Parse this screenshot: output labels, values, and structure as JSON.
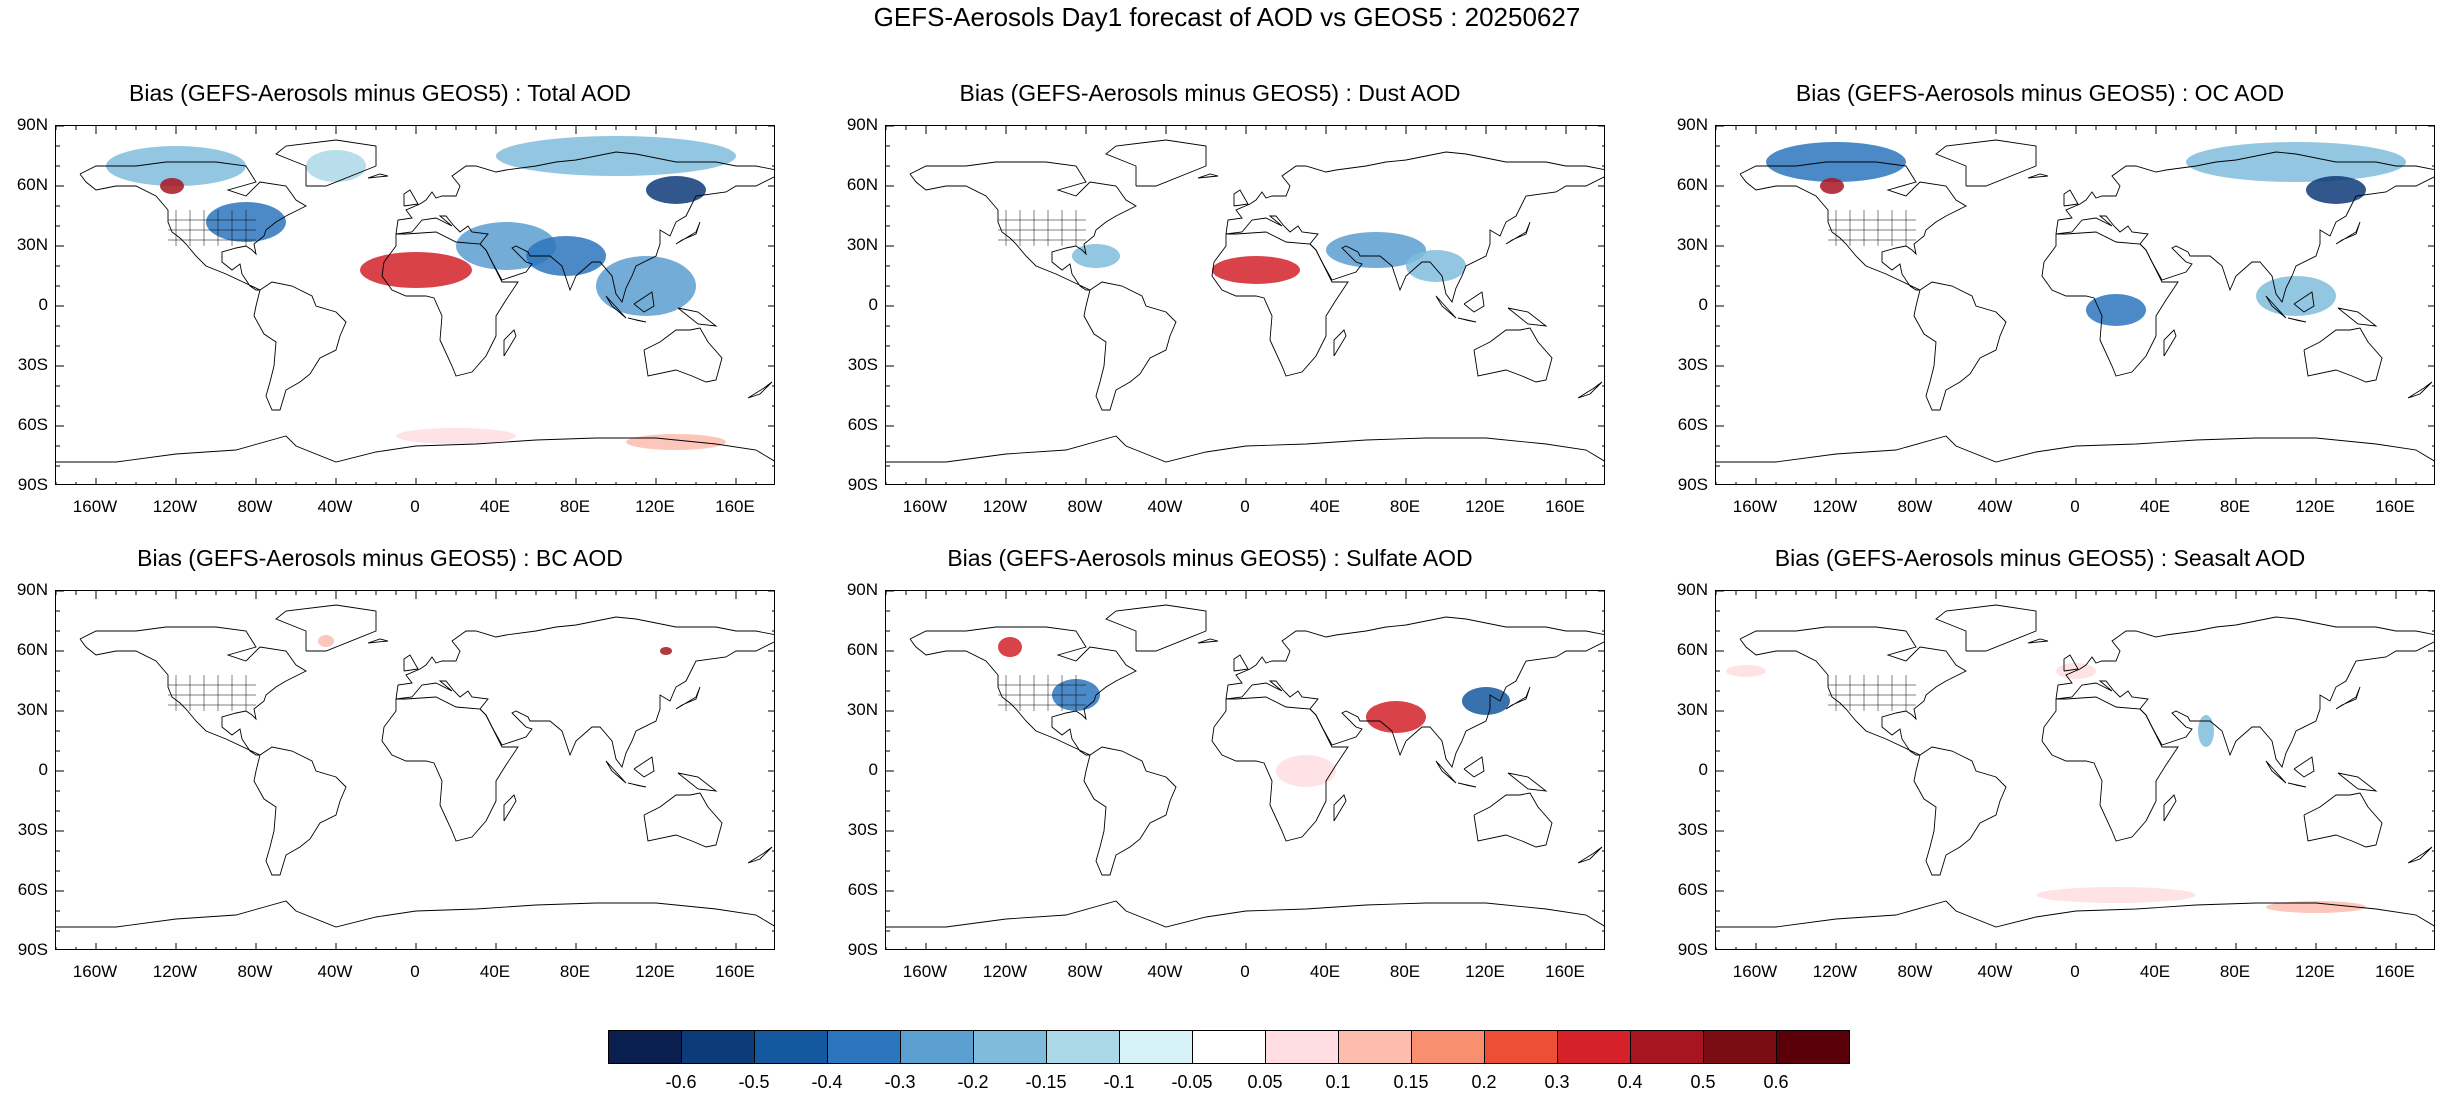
{
  "title": "GEFS-Aerosols Day1 forecast of AOD vs GEOS5 : 20250627",
  "lat_labels": [
    "90N",
    "60N",
    "30N",
    "0",
    "30S",
    "60S",
    "90S"
  ],
  "lon_labels": [
    "160W",
    "120W",
    "80W",
    "40W",
    "0",
    "40E",
    "80E",
    "120E",
    "160E"
  ],
  "panels": [
    {
      "title": "Bias (GEFS-Aerosols minus GEOS5) : Total AOD",
      "blobs": [
        {
          "lon": -120,
          "lat": 70,
          "rx": 35,
          "ry": 10,
          "v": -0.15
        },
        {
          "lon": -40,
          "lat": 70,
          "rx": 15,
          "ry": 8,
          "v": -0.1
        },
        {
          "lon": 100,
          "lat": 75,
          "rx": 60,
          "ry": 10,
          "v": -0.15
        },
        {
          "lon": 130,
          "lat": 58,
          "rx": 15,
          "ry": 7,
          "v": -0.5
        },
        {
          "lon": -122,
          "lat": 60,
          "rx": 6,
          "ry": 4,
          "v": 0.5
        },
        {
          "lon": -85,
          "lat": 42,
          "rx": 20,
          "ry": 10,
          "v": -0.3
        },
        {
          "lon": 0,
          "lat": 18,
          "rx": 28,
          "ry": 9,
          "v": 0.4
        },
        {
          "lon": 45,
          "lat": 30,
          "rx": 25,
          "ry": 12,
          "v": -0.2
        },
        {
          "lon": 75,
          "lat": 25,
          "rx": 20,
          "ry": 10,
          "v": -0.3
        },
        {
          "lon": 115,
          "lat": 10,
          "rx": 25,
          "ry": 15,
          "v": -0.2
        },
        {
          "lon": 20,
          "lat": -65,
          "rx": 30,
          "ry": 4,
          "v": 0.1
        },
        {
          "lon": 130,
          "lat": -68,
          "rx": 25,
          "ry": 4,
          "v": 0.15
        }
      ]
    },
    {
      "title": "Bias (GEFS-Aerosols minus GEOS5) : Dust AOD",
      "blobs": [
        {
          "lon": 5,
          "lat": 18,
          "rx": 22,
          "ry": 7,
          "v": 0.4
        },
        {
          "lon": 65,
          "lat": 28,
          "rx": 25,
          "ry": 9,
          "v": -0.2
        },
        {
          "lon": -75,
          "lat": 25,
          "rx": 12,
          "ry": 6,
          "v": -0.15
        },
        {
          "lon": 95,
          "lat": 20,
          "rx": 15,
          "ry": 8,
          "v": -0.15
        }
      ]
    },
    {
      "title": "Bias (GEFS-Aerosols minus GEOS5) : OC AOD",
      "blobs": [
        {
          "lon": -120,
          "lat": 72,
          "rx": 35,
          "ry": 10,
          "v": -0.3
        },
        {
          "lon": 110,
          "lat": 72,
          "rx": 55,
          "ry": 10,
          "v": -0.15
        },
        {
          "lon": 130,
          "lat": 58,
          "rx": 15,
          "ry": 7,
          "v": -0.5
        },
        {
          "lon": -122,
          "lat": 60,
          "rx": 6,
          "ry": 4,
          "v": 0.5
        },
        {
          "lon": 20,
          "lat": -2,
          "rx": 15,
          "ry": 8,
          "v": -0.3
        },
        {
          "lon": 110,
          "lat": 5,
          "rx": 20,
          "ry": 10,
          "v": -0.15
        }
      ]
    },
    {
      "title": "Bias (GEFS-Aerosols minus GEOS5) : BC AOD",
      "blobs": [
        {
          "lon": -45,
          "lat": 65,
          "rx": 4,
          "ry": 3,
          "v": 0.15
        },
        {
          "lon": 125,
          "lat": 60,
          "rx": 3,
          "ry": 2,
          "v": 0.5
        }
      ]
    },
    {
      "title": "Bias (GEFS-Aerosols minus GEOS5) : Sulfate AOD",
      "blobs": [
        {
          "lon": -118,
          "lat": 62,
          "rx": 6,
          "ry": 5,
          "v": 0.4
        },
        {
          "lon": -85,
          "lat": 38,
          "rx": 12,
          "ry": 8,
          "v": -0.3
        },
        {
          "lon": 75,
          "lat": 27,
          "rx": 15,
          "ry": 8,
          "v": 0.4
        },
        {
          "lon": 120,
          "lat": 35,
          "rx": 12,
          "ry": 7,
          "v": -0.4
        },
        {
          "lon": 30,
          "lat": 0,
          "rx": 15,
          "ry": 8,
          "v": 0.1
        }
      ]
    },
    {
      "title": "Bias (GEFS-Aerosols minus GEOS5) : Seasalt AOD",
      "blobs": [
        {
          "lon": 20,
          "lat": -62,
          "rx": 40,
          "ry": 4,
          "v": 0.1
        },
        {
          "lon": 120,
          "lat": -68,
          "rx": 25,
          "ry": 3,
          "v": 0.15
        },
        {
          "lon": 0,
          "lat": 50,
          "rx": 10,
          "ry": 4,
          "v": 0.1
        },
        {
          "lon": -165,
          "lat": 50,
          "rx": 10,
          "ry": 3,
          "v": 0.1
        },
        {
          "lon": 65,
          "lat": 20,
          "rx": 4,
          "ry": 8,
          "v": -0.15
        }
      ]
    }
  ],
  "colorbar": {
    "labels": [
      "-0.6",
      "-0.5",
      "-0.4",
      "-0.3",
      "-0.2",
      "-0.15",
      "-0.1",
      "-0.05",
      "0.05",
      "0.1",
      "0.15",
      "0.2",
      "0.3",
      "0.4",
      "0.5",
      "0.6"
    ],
    "colors": [
      "#0a1f4d",
      "#0d3a78",
      "#1458a0",
      "#2b76bd",
      "#5b9ed0",
      "#7fbcdc",
      "#aad8e6",
      "#d6f1f8",
      "#ffffff",
      "#ffdde0",
      "#fdbcae",
      "#f8906f",
      "#ee4d36",
      "#d4212a",
      "#a71520",
      "#7a0d14",
      "#5a0008"
    ]
  }
}
